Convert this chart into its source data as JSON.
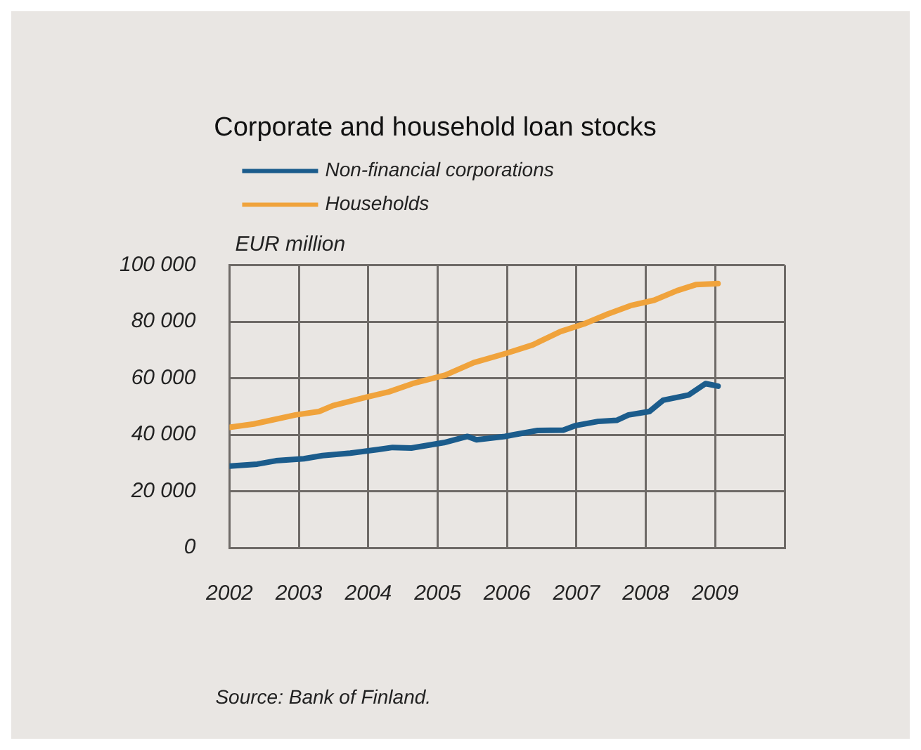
{
  "chart_data": {
    "type": "line",
    "title": "Corporate and household loan stocks",
    "ylabel": "EUR million",
    "annotations": [
      "Source: Bank of Finland."
    ],
    "series": [
      {
        "name": "Non-financial corporations",
        "color": "#1b5c8c",
        "x": [
          2002.0,
          2002.4,
          2002.67,
          2003.07,
          2003.34,
          2003.74,
          2004.15,
          2004.35,
          2004.62,
          2005.09,
          2005.43,
          2005.56,
          2005.97,
          2006.1,
          2006.44,
          2006.81,
          2006.98,
          2007.31,
          2007.58,
          2007.75,
          2008.05,
          2008.25,
          2008.62,
          2008.86,
          2009.04
        ],
        "values": [
          28900,
          29600,
          30800,
          31500,
          32600,
          33500,
          34800,
          35500,
          35300,
          37200,
          39400,
          38200,
          39400,
          40000,
          41500,
          41600,
          43200,
          44700,
          45100,
          47000,
          48200,
          52200,
          54100,
          58100,
          57200
        ]
      },
      {
        "name": "Households",
        "color": "#f0a33c",
        "x": [
          2002.0,
          2002.35,
          2002.95,
          2003.29,
          2003.49,
          2003.96,
          2004.3,
          2004.64,
          2005.11,
          2005.52,
          2006.0,
          2006.37,
          2006.77,
          2007.11,
          2007.45,
          2007.78,
          2008.12,
          2008.45,
          2008.72,
          2009.04
        ],
        "values": [
          42600,
          43800,
          47000,
          48200,
          50300,
          53200,
          55200,
          58100,
          61100,
          65500,
          68900,
          71800,
          76500,
          79200,
          82700,
          85700,
          87600,
          91000,
          93100,
          93500
        ]
      }
    ],
    "xlim": [
      2002,
      2010
    ],
    "xticks": [
      2002,
      2003,
      2004,
      2005,
      2006,
      2007,
      2008,
      2009,
      {
        "value": 2010,
        "label": null
      }
    ],
    "ylim": [
      0,
      100000
    ],
    "yticks": [
      0,
      {
        "value": 20000,
        "label": "20 000"
      },
      {
        "value": 40000,
        "label": "40 000"
      },
      {
        "value": 60000,
        "label": "60 000"
      },
      {
        "value": 80000,
        "label": "80 000"
      },
      {
        "value": 100000,
        "label": "100 000"
      }
    ],
    "grid": true,
    "legend": "top left",
    "marker": "none",
    "line_style": "solid"
  }
}
